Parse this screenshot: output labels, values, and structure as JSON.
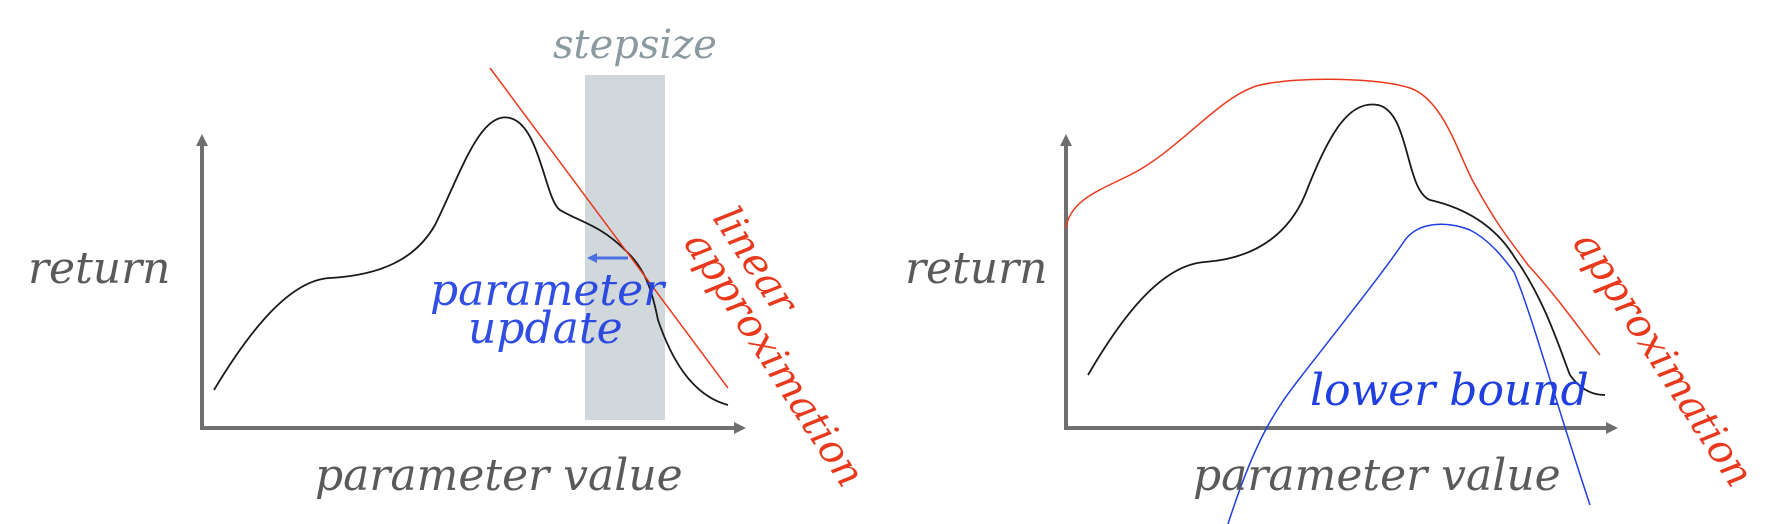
{
  "left_panel": {
    "y_label": "return",
    "x_label": "parameter value",
    "stepsize_label": "stepsize",
    "update_label_line1": "parameter",
    "update_label_line2": "update",
    "approx_label_line1": "linear",
    "approx_label_line2": "approximation"
  },
  "right_panel": {
    "y_label": "return",
    "x_label": "parameter value",
    "approx_label": "approximation",
    "lower_bound_label": "lower bound"
  },
  "colors": {
    "axis": "#6f6f6f",
    "curve": "#1a1a1a",
    "approximation": "#e8391c",
    "update": "#1f3fe0",
    "stepsize_band": "#cfd6d9"
  }
}
